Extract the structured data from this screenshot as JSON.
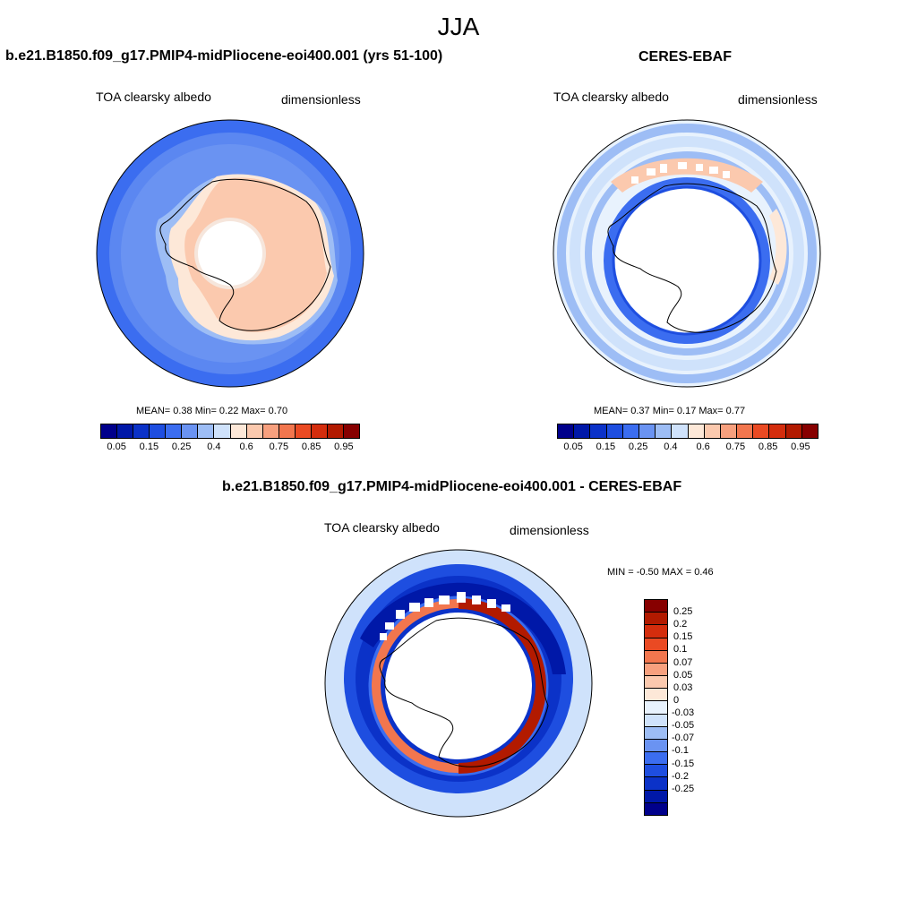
{
  "title": "JJA",
  "panel_left": {
    "title": "b.e21.B1850.f09_g17.PMIP4-midPliocene-eoi400.001 (yrs 51-100)",
    "variable": "TOA clearsky albedo",
    "units": "dimensionless",
    "stats": "MEAN=   0.38  Min=   0.22  Max=   0.70"
  },
  "panel_right": {
    "title": "CERES-EBAF",
    "variable": "TOA clearsky albedo",
    "units": "dimensionless",
    "stats": "MEAN=   0.37  Min=   0.17  Max=   0.77"
  },
  "panel_diff": {
    "title": "b.e21.B1850.f09_g17.PMIP4-midPliocene-eoi400.001 - CERES-EBAF",
    "variable": "TOA clearsky albedo",
    "units": "dimensionless",
    "stats": "MIN =  -0.50 MAX =   0.46"
  },
  "colorbar_abs": {
    "colors": [
      "#00008b",
      "#0018a8",
      "#0b32c8",
      "#1e4ee0",
      "#3b6df0",
      "#6a93f2",
      "#9dbdf5",
      "#cfe2fb",
      "#fde8d8",
      "#fbc9ae",
      "#f7a07e",
      "#f2764e",
      "#ea4a23",
      "#d42d0d",
      "#b21a00",
      "#870000"
    ],
    "labels": [
      "0.05",
      "0.15",
      "0.25",
      "0.4",
      "0.6",
      "0.75",
      "0.85",
      "0.95"
    ]
  },
  "colorbar_diff": {
    "colors": [
      "#870000",
      "#b21a00",
      "#d42d0d",
      "#ea4a23",
      "#f2764e",
      "#f7a07e",
      "#fbc9ae",
      "#fde8d8",
      "#e8f2fd",
      "#cfe2fb",
      "#9dbdf5",
      "#6a93f2",
      "#3b6df0",
      "#1e4ee0",
      "#0b32c8",
      "#0018a8",
      "#00008b"
    ],
    "labels": [
      "0.25",
      "0.2",
      "0.15",
      "0.1",
      "0.07",
      "0.05",
      "0.03",
      "0",
      "-0.03",
      "-0.05",
      "-0.07",
      "-0.1",
      "-0.15",
      "-0.2",
      "-0.25"
    ]
  }
}
